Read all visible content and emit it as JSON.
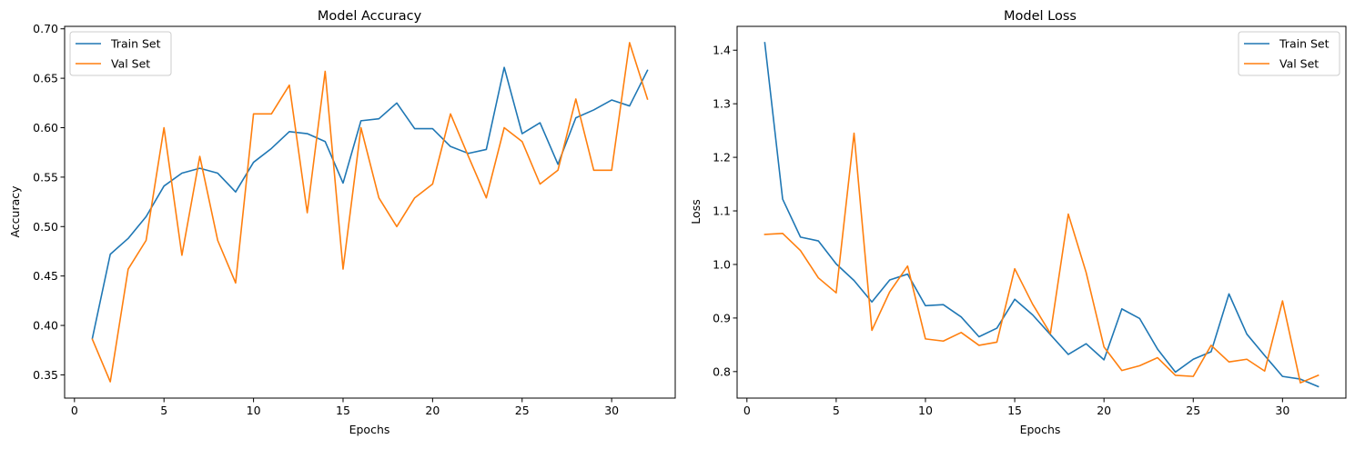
{
  "colors": {
    "train": "#1f77b4",
    "val": "#ff7f0e"
  },
  "chart_data": [
    {
      "type": "line",
      "title": "Model Accuracy",
      "xlabel": "Epochs",
      "ylabel": "Accuracy",
      "xlim": [
        -0.55,
        33.55
      ],
      "ylim": [
        0.3265,
        0.7025
      ],
      "xticks": [
        0,
        5,
        10,
        15,
        20,
        25,
        30
      ],
      "yticks": [
        0.35,
        0.4,
        0.45,
        0.5,
        0.55,
        0.6,
        0.65,
        0.7
      ],
      "ytick_labels": [
        "0.35",
        "0.40",
        "0.45",
        "0.50",
        "0.55",
        "0.60",
        "0.65",
        "0.70"
      ],
      "grid": false,
      "legend_loc": "upper left",
      "x": [
        1,
        2,
        3,
        4,
        5,
        6,
        7,
        8,
        9,
        10,
        11,
        12,
        13,
        14,
        15,
        16,
        17,
        18,
        19,
        20,
        21,
        22,
        23,
        24,
        25,
        26,
        27,
        28,
        29,
        30,
        31,
        32
      ],
      "series": [
        {
          "name": "Train Set",
          "color": "#1f77b4",
          "values": [
            0.387,
            0.472,
            0.488,
            0.51,
            0.541,
            0.554,
            0.559,
            0.554,
            0.535,
            0.565,
            0.579,
            0.596,
            0.594,
            0.586,
            0.544,
            0.607,
            0.609,
            0.625,
            0.599,
            0.599,
            0.581,
            0.574,
            0.578,
            0.661,
            0.594,
            0.605,
            0.563,
            0.61,
            0.618,
            0.628,
            0.622,
            0.658
          ]
        },
        {
          "name": "Val Set",
          "color": "#ff7f0e",
          "values": [
            0.386,
            0.343,
            0.457,
            0.486,
            0.6,
            0.471,
            0.571,
            0.486,
            0.443,
            0.614,
            0.614,
            0.643,
            0.514,
            0.657,
            0.457,
            0.6,
            0.529,
            0.5,
            0.529,
            0.543,
            0.614,
            0.571,
            0.529,
            0.6,
            0.586,
            0.543,
            0.557,
            0.629,
            0.557,
            0.557,
            0.686,
            0.629
          ]
        }
      ]
    },
    {
      "type": "line",
      "title": "Model Loss",
      "xlabel": "Epochs",
      "ylabel": "Loss",
      "xlim": [
        -0.55,
        33.55
      ],
      "ylim": [
        0.7505,
        1.4445
      ],
      "xticks": [
        0,
        5,
        10,
        15,
        20,
        25,
        30
      ],
      "yticks": [
        0.8,
        0.9,
        1.0,
        1.1,
        1.2,
        1.3,
        1.4
      ],
      "ytick_labels": [
        "0.8",
        "0.9",
        "1.0",
        "1.1",
        "1.2",
        "1.3",
        "1.4"
      ],
      "grid": false,
      "legend_loc": "upper right",
      "x": [
        1,
        2,
        3,
        4,
        5,
        6,
        7,
        8,
        9,
        10,
        11,
        12,
        13,
        14,
        15,
        16,
        17,
        18,
        19,
        20,
        21,
        22,
        23,
        24,
        25,
        26,
        27,
        28,
        29,
        30,
        31,
        32
      ],
      "series": [
        {
          "name": "Train Set",
          "color": "#1f77b4",
          "values": [
            1.414,
            1.122,
            1.051,
            1.044,
            1.001,
            0.97,
            0.93,
            0.971,
            0.982,
            0.923,
            0.925,
            0.902,
            0.865,
            0.881,
            0.935,
            0.906,
            0.869,
            0.832,
            0.852,
            0.822,
            0.917,
            0.899,
            0.842,
            0.799,
            0.823,
            0.837,
            0.945,
            0.87,
            0.83,
            0.791,
            0.786,
            0.772
          ]
        },
        {
          "name": "Val Set",
          "color": "#ff7f0e",
          "values": [
            1.056,
            1.058,
            1.026,
            0.975,
            0.947,
            1.245,
            0.877,
            0.949,
            0.997,
            0.861,
            0.857,
            0.873,
            0.849,
            0.855,
            0.992,
            0.926,
            0.871,
            1.094,
            0.985,
            0.846,
            0.802,
            0.811,
            0.826,
            0.793,
            0.791,
            0.849,
            0.818,
            0.823,
            0.801,
            0.932,
            0.779,
            0.793
          ]
        }
      ]
    }
  ]
}
